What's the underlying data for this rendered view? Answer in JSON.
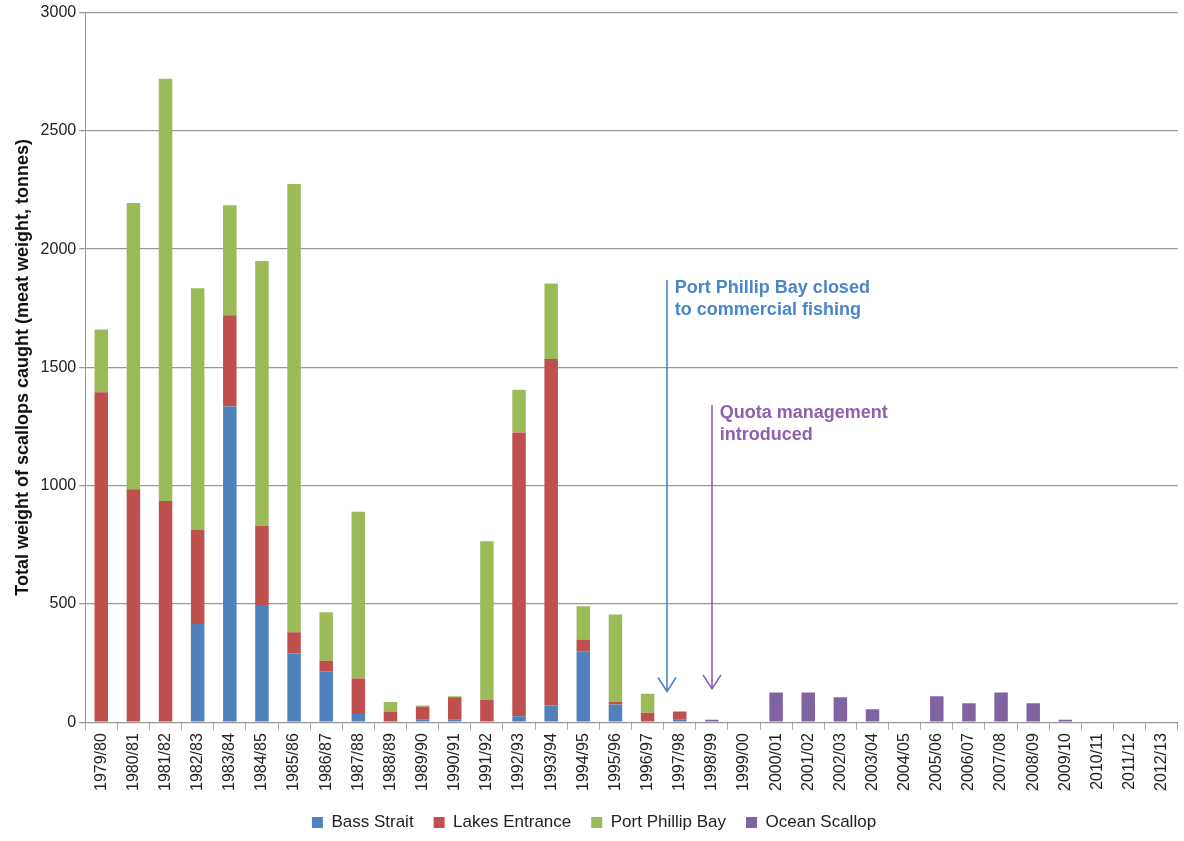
{
  "chart_data": {
    "type": "bar",
    "stacked": true,
    "ylabel": "Total weight of scallops caught (meat weight, tonnes)",
    "categories": [
      "1979/80",
      "1980/81",
      "1981/82",
      "1982/83",
      "1983/84",
      "1984/85",
      "1985/86",
      "1986/87",
      "1987/88",
      "1988/89",
      "1989/90",
      "1990/91",
      "1991/92",
      "1992/93",
      "1993/94",
      "1994/95",
      "1995/96",
      "1996/97",
      "1997/98",
      "1998/99",
      "1999/00",
      "2000/01",
      "2001/02",
      "2002/03",
      "2003/04",
      "2004/05",
      "2005/06",
      "2006/07",
      "2007/08",
      "2008/09",
      "2009/10",
      "2010/11",
      "2011/12",
      "2012/13"
    ],
    "series": [
      {
        "name": "Bass Strait",
        "color": "#4f81bd",
        "values": [
          null,
          null,
          null,
          415,
          1335,
          495,
          290,
          215,
          35,
          null,
          10,
          10,
          null,
          25,
          70,
          300,
          75,
          null,
          10,
          null,
          null,
          null,
          null,
          null,
          null,
          null,
          null,
          null,
          null,
          null,
          null,
          null,
          null,
          null
        ]
      },
      {
        "name": "Lakes Entrance",
        "color": "#c0504d",
        "values": [
          1395,
          985,
          935,
          400,
          385,
          335,
          90,
          45,
          150,
          45,
          55,
          95,
          95,
          1200,
          1465,
          50,
          10,
          40,
          35,
          null,
          null,
          null,
          null,
          null,
          null,
          null,
          null,
          null,
          null,
          null,
          null,
          null,
          null,
          null
        ]
      },
      {
        "name": "Port Phillip Bay",
        "color": "#9bbb59",
        "values": [
          265,
          1210,
          1785,
          1020,
          465,
          1120,
          1895,
          205,
          705,
          40,
          5,
          5,
          670,
          180,
          320,
          140,
          370,
          80,
          null,
          null,
          null,
          null,
          null,
          null,
          null,
          null,
          null,
          null,
          null,
          null,
          null,
          null,
          null,
          null
        ]
      },
      {
        "name": "Ocean Scallop",
        "color": "#8064a2",
        "values": [
          null,
          null,
          null,
          null,
          null,
          null,
          null,
          null,
          null,
          null,
          null,
          null,
          null,
          null,
          null,
          null,
          null,
          null,
          null,
          10,
          null,
          125,
          125,
          105,
          55,
          null,
          110,
          80,
          125,
          80,
          10,
          null,
          null,
          null
        ]
      }
    ],
    "ylim": [
      0,
      3000
    ],
    "yticks": [
      0,
      500,
      1000,
      1500,
      2000,
      2500,
      3000
    ],
    "grid": "y",
    "legend": "bottom",
    "annotations": [
      "Port Phillip Bay closed to commercial fishing",
      "Quota management introduced"
    ]
  }
}
